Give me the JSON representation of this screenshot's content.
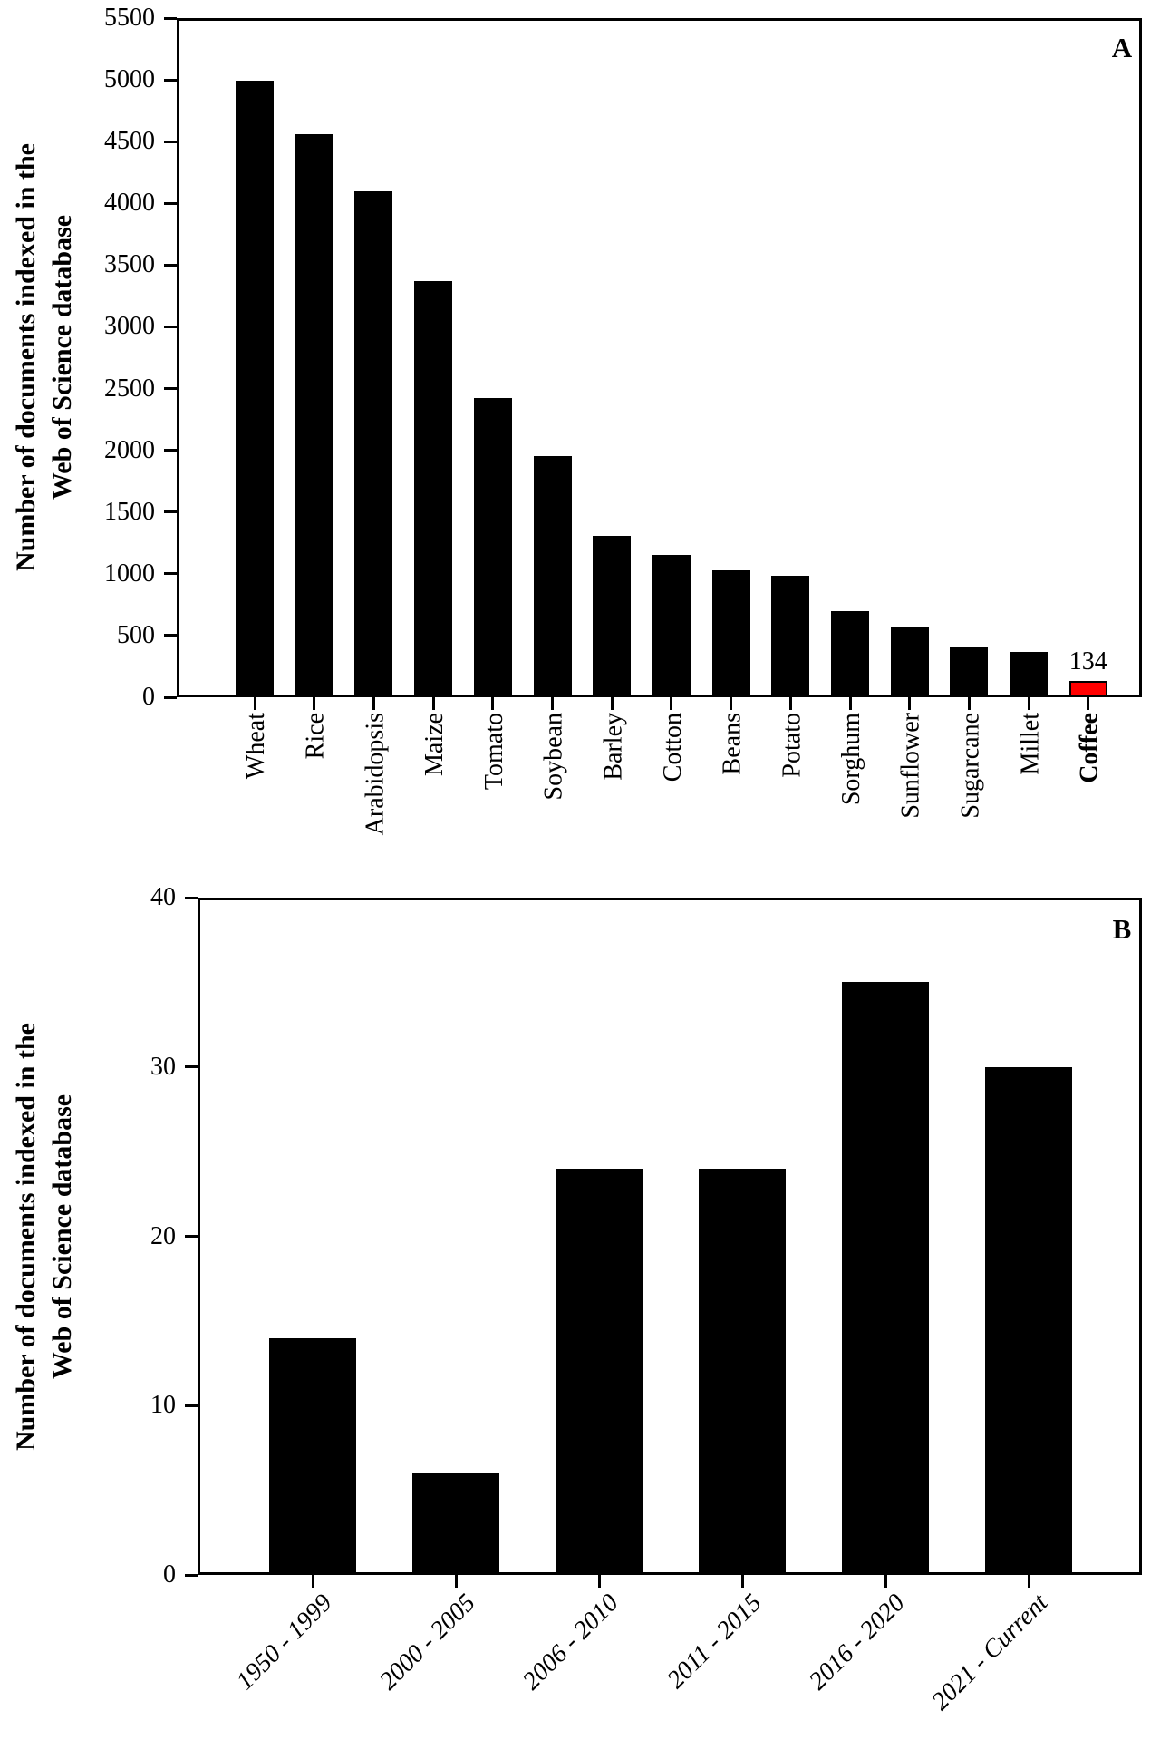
{
  "figure": {
    "background": "#ffffff",
    "bar_color": "#000000",
    "highlight_color": "#ff0000"
  },
  "chart_data": [
    {
      "panel": "A",
      "type": "bar",
      "title": "",
      "ylabel_line1": "Number of documents indexed in the",
      "ylabel_line2": "Web of Science database",
      "xlabel": "",
      "categories": [
        "Wheat",
        "Rice",
        "Arabidopsis",
        "Maize",
        "Tomato",
        "Soybean",
        "Barley",
        "Cotton",
        "Beans",
        "Potato",
        "Sorghum",
        "Sunflower",
        "Sugarcane",
        "Millet",
        "Coffee"
      ],
      "values": [
        4990,
        4560,
        4100,
        3370,
        2420,
        1950,
        1310,
        1150,
        1030,
        985,
        700,
        565,
        405,
        370,
        134
      ],
      "ylim": [
        0,
        5500
      ],
      "ytick_step": 500,
      "grid": false,
      "bar_color": "#000000",
      "highlight_index": 14,
      "highlight_color": "#ff0000",
      "highlight_label": "134",
      "bold_category_index": 14,
      "xlabel_style": "vertical"
    },
    {
      "panel": "B",
      "type": "bar",
      "title": "",
      "ylabel_line1": "Number of documents indexed in the",
      "ylabel_line2": "Web of Science database",
      "xlabel": "",
      "categories": [
        "1950 - 1999",
        "2000 - 2005",
        "2006 - 2010",
        "2011 - 2015",
        "2016 - 2020",
        "2021 - Current"
      ],
      "values": [
        14,
        6,
        24,
        24,
        35,
        30
      ],
      "ylim": [
        0,
        40
      ],
      "ytick_step": 10,
      "grid": false,
      "bar_color": "#000000",
      "xlabel_style": "oblique-45"
    }
  ]
}
